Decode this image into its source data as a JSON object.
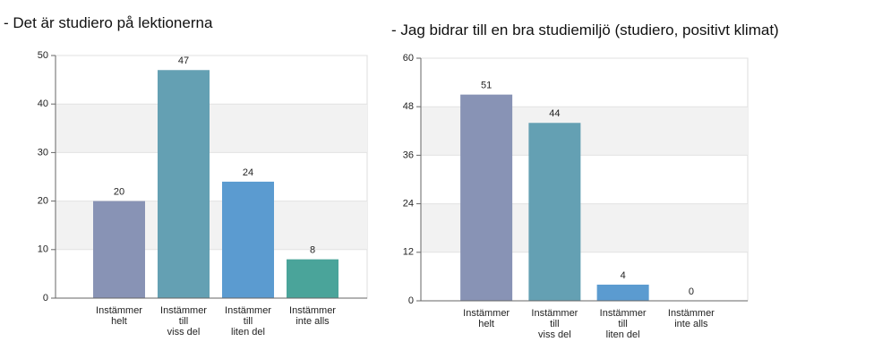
{
  "chart_data": [
    {
      "type": "bar",
      "title": "- Det är studiero på lektionerna",
      "categories": [
        "Instämmer\nhelt",
        "Instämmer\ntill\nviss del",
        "Instämmer\ntill\nliten del",
        "Instämmer\ninte alls"
      ],
      "values": [
        20,
        47,
        24,
        8
      ],
      "colors": [
        "#8893b5",
        "#64a0b3",
        "#5b9bd0",
        "#4aa49a"
      ],
      "ylim": [
        0,
        50
      ],
      "yticks": [
        0,
        10,
        20,
        30,
        40,
        50
      ],
      "grid": true
    },
    {
      "type": "bar",
      "title": "- Jag bidrar till en bra studiemiljö (studiero, positivt klimat)",
      "categories": [
        "Instämmer\nhelt",
        "Instämmer\ntill\nviss del",
        "Instämmer\ntill\nliten del",
        "Instämmer\ninte alls"
      ],
      "values": [
        51,
        44,
        4,
        0
      ],
      "colors": [
        "#8893b5",
        "#64a0b3",
        "#5b9bd0",
        "#4aa49a"
      ],
      "ylim": [
        0,
        60
      ],
      "yticks": [
        0,
        12,
        24,
        36,
        48,
        60
      ],
      "grid": true
    }
  ]
}
